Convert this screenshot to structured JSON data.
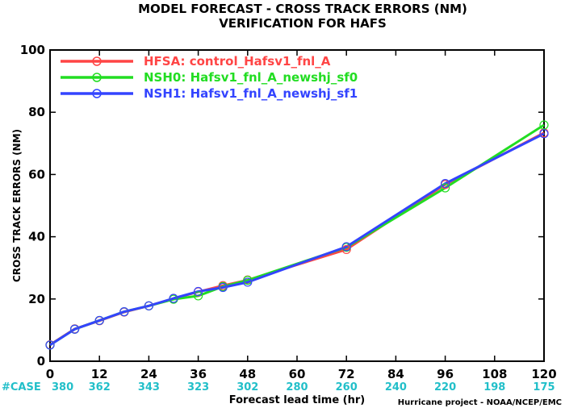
{
  "chart_data": {
    "type": "line",
    "title": "MODEL FORECAST - CROSS TRACK ERRORS (NM)",
    "subtitle": "VERIFICATION FOR HAFS",
    "xlabel": "Forecast lead time (hr)",
    "ylabel": "CROSS TRACK ERRORS (NM)",
    "xlim": [
      0,
      120
    ],
    "ylim": [
      0,
      100
    ],
    "x_ticks": [
      "0",
      "12",
      "24",
      "36",
      "48",
      "60",
      "72",
      "84",
      "96",
      "108",
      "120"
    ],
    "y_ticks": [
      "0",
      "20",
      "40",
      "60",
      "80",
      "100"
    ],
    "grid": false,
    "legend_position": "top-left",
    "case_label": "#CASE",
    "case_counts": [
      {
        "x": 0,
        "n": "380"
      },
      {
        "x": 12,
        "n": "362"
      },
      {
        "x": 24,
        "n": "343"
      },
      {
        "x": 36,
        "n": "323"
      },
      {
        "x": 48,
        "n": "302"
      },
      {
        "x": 60,
        "n": "280"
      },
      {
        "x": 72,
        "n": "260"
      },
      {
        "x": 84,
        "n": "240"
      },
      {
        "x": 96,
        "n": "220"
      },
      {
        "x": 108,
        "n": "198"
      },
      {
        "x": 120,
        "n": "175"
      }
    ],
    "credit": "Hurricane project - NOAA/NCEP/EMC",
    "x": [
      0,
      6,
      12,
      18,
      24,
      30,
      36,
      42,
      48,
      72,
      96,
      120
    ],
    "series": [
      {
        "name": "HFSA: control_Hafsv1_fnl_A",
        "color": "#ff4545",
        "values": [
          5.3,
          10.4,
          13.0,
          15.8,
          17.8,
          20.1,
          22.3,
          24.3,
          26.1,
          35.9,
          56.8,
          73.4
        ]
      },
      {
        "name": "NSH0: Hafsv1_fnl_A_newshj_sf0",
        "color": "#22dd22",
        "values": [
          5.2,
          10.3,
          13.1,
          15.9,
          17.8,
          19.9,
          21.0,
          24.0,
          26.0,
          36.6,
          55.7,
          75.9
        ]
      },
      {
        "name": "NSH1: Hafsv1_fnl_A_newshj_sf1",
        "color": "#3344ff",
        "values": [
          5.2,
          10.3,
          13.1,
          15.9,
          17.8,
          20.2,
          22.4,
          23.7,
          25.4,
          36.8,
          57.1,
          73.1
        ]
      }
    ]
  }
}
